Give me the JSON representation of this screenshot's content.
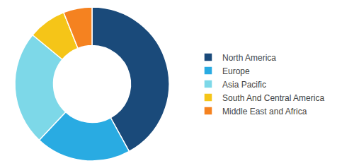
{
  "chart_data": {
    "type": "donut",
    "categories": [
      "North America",
      "Europe",
      "Asia Pacific",
      "South And Central America",
      "Middle East and Africa"
    ],
    "values": [
      42,
      20,
      24,
      8,
      6
    ],
    "colors": [
      "#1a4a7a",
      "#29abe2",
      "#7dd8e8",
      "#f5c518",
      "#f58220"
    ],
    "legend": "right"
  }
}
